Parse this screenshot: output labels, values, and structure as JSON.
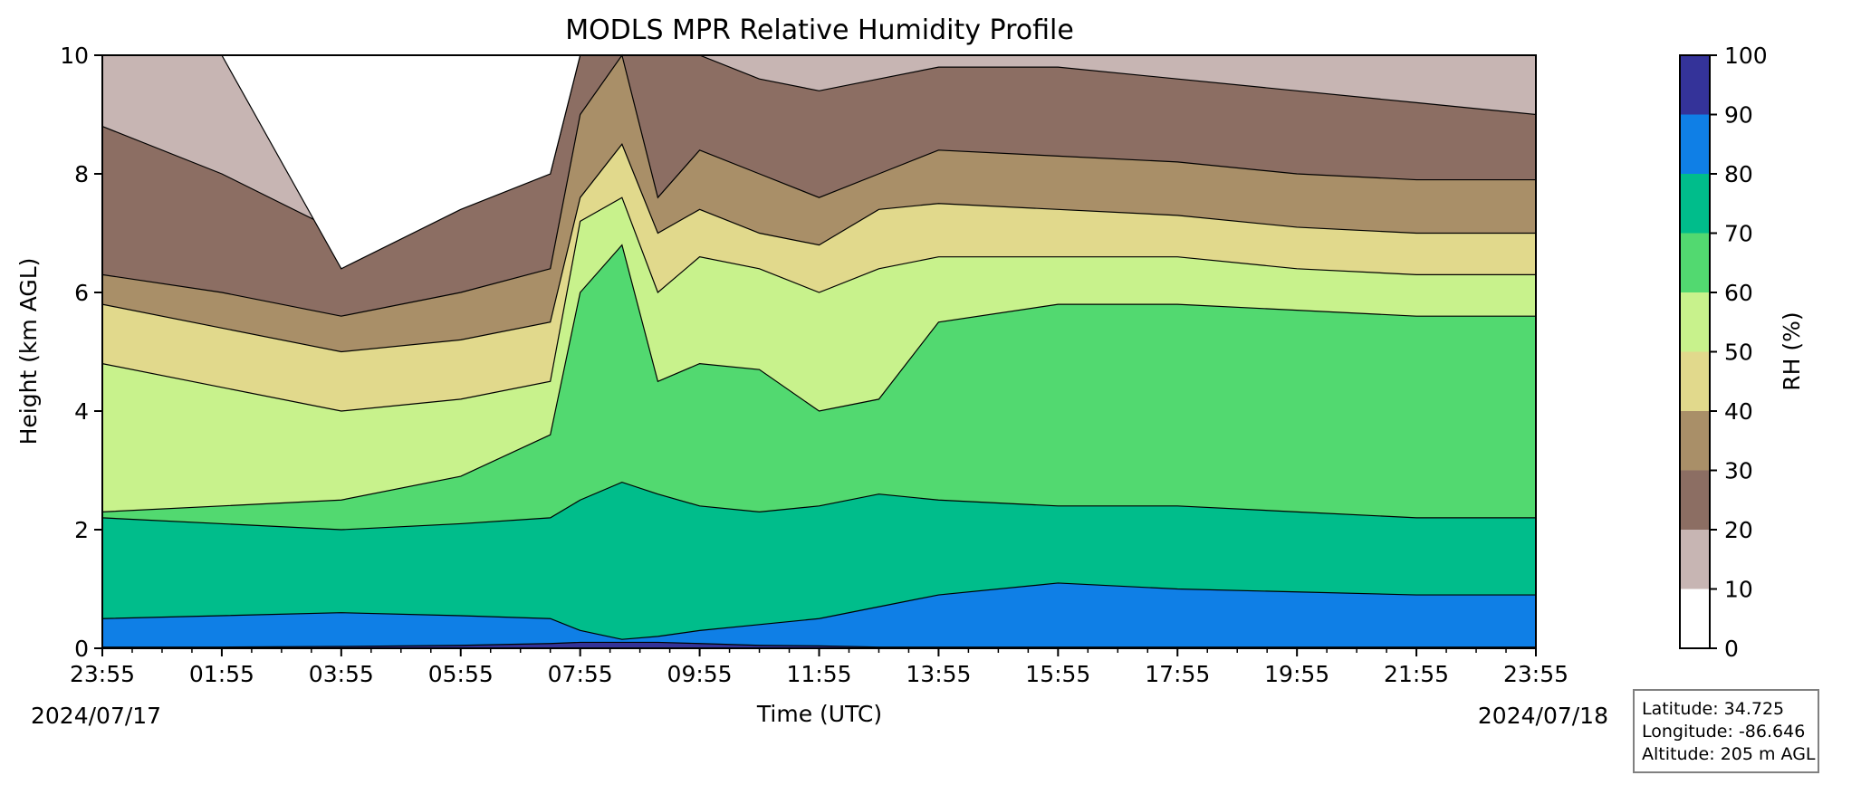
{
  "chart_data": {
    "type": "heatmap",
    "title": "MODLS MPR Relative Humidity Profile",
    "xlabel": "Time (UTC)",
    "ylabel": "Height (km AGL)",
    "ylim": [
      0,
      10
    ],
    "x_ticks": [
      "23:55",
      "01:55",
      "03:55",
      "05:55",
      "07:55",
      "09:55",
      "11:55",
      "13:55",
      "15:55",
      "17:55",
      "19:55",
      "21:55",
      "23:55"
    ],
    "y_ticks": [
      "0",
      "2",
      "4",
      "6",
      "8",
      "10"
    ],
    "start_date": "2024/07/17",
    "end_date": "2024/07/18",
    "colorbar": {
      "label": "RH (%)",
      "levels": [
        0,
        10,
        20,
        30,
        40,
        50,
        60,
        70,
        80,
        90,
        100
      ],
      "tick_labels": [
        "0",
        "10",
        "20",
        "30",
        "40",
        "50",
        "60",
        "70",
        "80",
        "90",
        "100"
      ],
      "colors": [
        "#ffffff",
        "#c7b5b3",
        "#8c6e63",
        "#a98f68",
        "#e1d98c",
        "#c8f28c",
        "#52d970",
        "#00bd8b",
        "#0f7fe6",
        "#343399"
      ]
    },
    "rh_contour_heights_km": {
      "x_hours": [
        0,
        2,
        4,
        6,
        7.5,
        8,
        8.7,
        9.3,
        10,
        11,
        12,
        13,
        14,
        16,
        18,
        20,
        22,
        24
      ],
      "rh_90": [
        0.02,
        0.02,
        0.03,
        0.05,
        0.08,
        0.1,
        0.1,
        0.1,
        0.08,
        0.05,
        0.04,
        0.02,
        0.02,
        0.02,
        0.02,
        0.02,
        0.02,
        0.02
      ],
      "rh_80": [
        0.5,
        0.55,
        0.6,
        0.55,
        0.5,
        0.3,
        0.15,
        0.2,
        0.3,
        0.4,
        0.5,
        0.7,
        0.9,
        1.1,
        1.0,
        0.95,
        0.9,
        0.9
      ],
      "rh_70": [
        2.2,
        2.1,
        2.0,
        2.1,
        2.2,
        2.5,
        2.8,
        2.6,
        2.4,
        2.3,
        2.4,
        2.6,
        2.5,
        2.4,
        2.4,
        2.3,
        2.2,
        2.2
      ],
      "rh_60": [
        2.3,
        2.4,
        2.5,
        2.9,
        3.6,
        6.0,
        6.8,
        4.5,
        4.8,
        4.7,
        4.0,
        4.2,
        5.5,
        5.8,
        5.8,
        5.7,
        5.6,
        5.6
      ],
      "rh_50": [
        4.8,
        4.4,
        4.0,
        4.2,
        4.5,
        7.2,
        7.6,
        6.0,
        6.6,
        6.4,
        6.0,
        6.4,
        6.6,
        6.6,
        6.6,
        6.4,
        6.3,
        6.3
      ],
      "rh_40": [
        5.8,
        5.4,
        5.0,
        5.2,
        5.5,
        7.6,
        8.5,
        7.0,
        7.4,
        7.0,
        6.8,
        7.4,
        7.5,
        7.4,
        7.3,
        7.1,
        7.0,
        7.0
      ],
      "rh_30": [
        6.3,
        6.0,
        5.6,
        6.0,
        6.4,
        9.0,
        10.0,
        7.6,
        8.4,
        8.0,
        7.6,
        8.0,
        8.4,
        8.3,
        8.2,
        8.0,
        7.9,
        7.9
      ],
      "rh_20": [
        8.8,
        8.0,
        7.0,
        7.6,
        8.0,
        10.0,
        10.0,
        10.0,
        10.0,
        9.6,
        9.4,
        9.6,
        9.8,
        9.8,
        9.6,
        9.4,
        9.2,
        9.0
      ],
      "rh_10": [
        10.0,
        10.0,
        6.4,
        7.4,
        8.0,
        10.0,
        10.0,
        10.0,
        10.0,
        10.0,
        10.0,
        10.0,
        10.0,
        10.0,
        10.0,
        10.0,
        10.0,
        10.0
      ]
    }
  },
  "info": {
    "latitude": "Latitude: 34.725",
    "longitude": "Longitude: -86.646",
    "altitude": "Altitude: 205 m AGL"
  }
}
